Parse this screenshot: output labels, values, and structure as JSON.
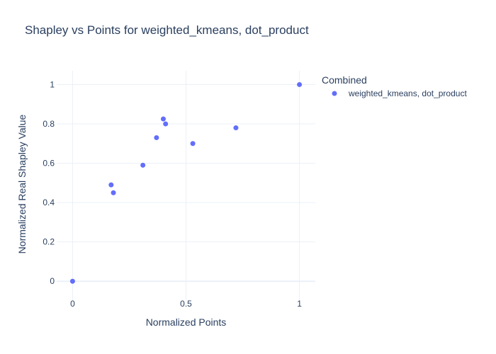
{
  "chart_data": {
    "type": "scatter",
    "title": "Shapley vs Points for weighted_kmeans, dot_product",
    "xlabel": "Normalized Points",
    "ylabel": "Normalized Real Shapley Value",
    "xlim": [
      -0.07,
      1.07
    ],
    "ylim": [
      -0.1,
      1.07
    ],
    "x_ticks": [
      0,
      0.5,
      1
    ],
    "x_tick_labels": [
      "0",
      "0.5",
      "1"
    ],
    "y_ticks": [
      0,
      0.2,
      0.4,
      0.6,
      0.8,
      1
    ],
    "y_tick_labels": [
      "0",
      "0.2",
      "0.4",
      "0.6",
      "0.8",
      "1"
    ],
    "grid": true,
    "legend": {
      "title": "Combined",
      "placement": "top-right outside"
    },
    "series": [
      {
        "name": "weighted_kmeans, dot_product",
        "color": "#636efa",
        "points": [
          {
            "x": 0.0,
            "y": 0.0
          },
          {
            "x": 0.17,
            "y": 0.49
          },
          {
            "x": 0.18,
            "y": 0.45
          },
          {
            "x": 0.31,
            "y": 0.59
          },
          {
            "x": 0.37,
            "y": 0.73
          },
          {
            "x": 0.4,
            "y": 0.825
          },
          {
            "x": 0.41,
            "y": 0.8
          },
          {
            "x": 0.53,
            "y": 0.7
          },
          {
            "x": 0.72,
            "y": 0.78
          },
          {
            "x": 1.0,
            "y": 1.0
          }
        ]
      }
    ]
  }
}
